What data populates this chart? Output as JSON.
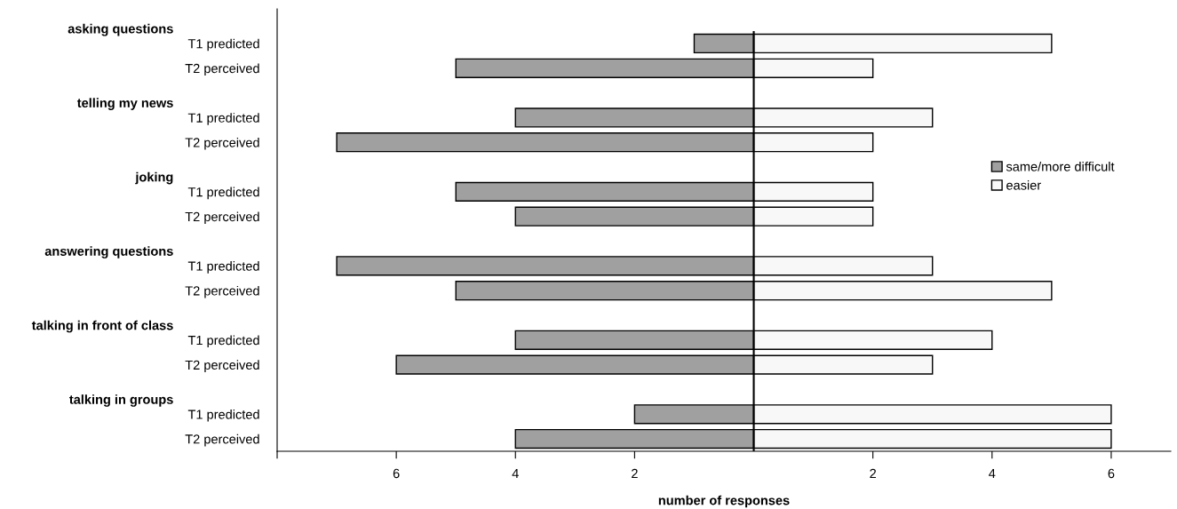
{
  "chart_data": {
    "type": "bar",
    "orientation": "horizontal",
    "stacked": true,
    "categories": [
      "T1 predicted",
      "T2 perceived",
      null,
      "T1 predicted",
      "T2 perceived",
      null,
      "T1 predicted",
      "T2 perceived",
      null,
      "T1 predicted",
      "T2 perceived",
      null,
      "T1 predicted",
      "T2 perceived",
      null,
      "T1 predicted",
      "T2 perceived"
    ],
    "series": [
      {
        "name": "same/more difficult",
        "color": "#a0a0a0",
        "values": [
          -1,
          -5,
          null,
          -4,
          -7,
          null,
          -5,
          -4,
          null,
          -7,
          -5,
          null,
          -4,
          -6,
          null,
          -2,
          -4
        ]
      },
      {
        "name": "easier",
        "color": "#f8f8f8",
        "values": [
          5,
          2,
          null,
          3,
          2,
          null,
          2,
          2,
          null,
          3,
          5,
          null,
          4,
          3,
          null,
          6,
          6
        ]
      }
    ],
    "annotations": [
      "asking questions",
      "telling my news",
      "joking",
      "answering questions",
      "talking in front of class",
      "talking in groups"
    ],
    "xlabel": "number of responses",
    "xlim": [
      -8,
      7
    ],
    "xticks": [
      {
        "value": -8,
        "label": null
      },
      {
        "value": -6,
        "label": "6"
      },
      {
        "value": -4,
        "label": "4"
      },
      {
        "value": -2,
        "label": "2"
      },
      2,
      4,
      6
    ],
    "grid": false,
    "legend": "right"
  }
}
